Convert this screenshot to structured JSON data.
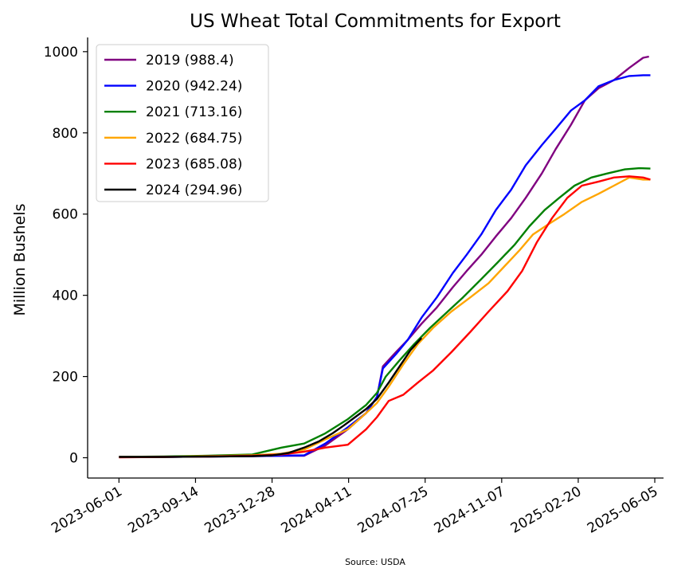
{
  "chart_data": {
    "type": "line",
    "title": "US Wheat Total Commitments for Export",
    "xlabel": "",
    "ylabel": "Million Bushels",
    "source": "Source: USDA",
    "ylim": [
      -50,
      1035
    ],
    "yticks": [
      0,
      200,
      400,
      600,
      800,
      1000
    ],
    "xlim": [
      "2023-04-19",
      "2025-06-17"
    ],
    "xticks": [
      "2023-06-01",
      "2023-09-14",
      "2023-12-28",
      "2024-04-11",
      "2024-07-25",
      "2024-11-07",
      "2025-02-20",
      "2025-06-05"
    ],
    "grid": false,
    "legend_position": "top-left",
    "series": [
      {
        "name": "2019 (988.4)",
        "color": "#800080",
        "x": [
          "2023-06-01",
          "2023-08-01",
          "2023-10-01",
          "2023-12-01",
          "2024-01-10",
          "2024-02-10",
          "2024-03-10",
          "2024-04-10",
          "2024-05-05",
          "2024-05-20",
          "2024-05-28",
          "2024-06-15",
          "2024-07-01",
          "2024-07-20",
          "2024-08-10",
          "2024-09-01",
          "2024-09-20",
          "2024-10-10",
          "2024-10-30",
          "2024-11-20",
          "2024-12-10",
          "2025-01-01",
          "2025-01-20",
          "2025-02-10",
          "2025-03-01",
          "2025-03-20",
          "2025-04-10",
          "2025-05-01",
          "2025-05-20",
          "2025-05-28"
        ],
        "values": [
          2,
          2,
          3,
          4,
          5,
          5,
          30,
          70,
          110,
          150,
          225,
          260,
          290,
          330,
          370,
          420,
          460,
          500,
          545,
          590,
          640,
          700,
          760,
          820,
          880,
          910,
          930,
          960,
          985,
          988
        ]
      },
      {
        "name": "2020 (942.24)",
        "color": "#0000ff",
        "x": [
          "2023-06-01",
          "2023-08-01",
          "2023-10-01",
          "2023-12-01",
          "2024-01-10",
          "2024-02-10",
          "2024-03-10",
          "2024-04-10",
          "2024-05-05",
          "2024-05-20",
          "2024-05-28",
          "2024-06-15",
          "2024-07-01",
          "2024-07-20",
          "2024-08-10",
          "2024-09-01",
          "2024-09-20",
          "2024-10-10",
          "2024-10-30",
          "2024-11-20",
          "2024-12-10",
          "2025-01-01",
          "2025-01-20",
          "2025-02-10",
          "2025-03-01",
          "2025-03-20",
          "2025-04-10",
          "2025-05-01",
          "2025-05-20",
          "2025-05-30"
        ],
        "values": [
          2,
          2,
          3,
          4,
          5,
          6,
          35,
          75,
          110,
          150,
          220,
          255,
          290,
          345,
          395,
          455,
          500,
          550,
          610,
          660,
          720,
          770,
          810,
          855,
          880,
          915,
          930,
          940,
          942,
          942
        ]
      },
      {
        "name": "2021 (713.16)",
        "color": "#008000",
        "x": [
          "2023-06-01",
          "2023-08-01",
          "2023-10-01",
          "2023-12-01",
          "2024-01-10",
          "2024-02-10",
          "2024-03-10",
          "2024-04-10",
          "2024-05-05",
          "2024-05-20",
          "2024-06-01",
          "2024-06-20",
          "2024-07-10",
          "2024-08-01",
          "2024-08-25",
          "2024-09-15",
          "2024-10-10",
          "2024-11-01",
          "2024-11-25",
          "2024-12-15",
          "2025-01-05",
          "2025-01-25",
          "2025-02-15",
          "2025-03-10",
          "2025-04-01",
          "2025-04-25",
          "2025-05-15",
          "2025-05-30"
        ],
        "values": [
          2,
          3,
          5,
          8,
          25,
          35,
          60,
          95,
          130,
          160,
          200,
          240,
          280,
          320,
          360,
          395,
          440,
          480,
          525,
          570,
          610,
          640,
          670,
          690,
          700,
          710,
          713,
          712
        ]
      },
      {
        "name": "2022 (684.75)",
        "color": "#ffa500",
        "x": [
          "2023-06-01",
          "2023-08-01",
          "2023-10-01",
          "2023-12-01",
          "2024-01-10",
          "2024-02-10",
          "2024-03-10",
          "2024-04-10",
          "2024-05-05",
          "2024-05-20",
          "2024-06-05",
          "2024-06-25",
          "2024-07-15",
          "2024-08-05",
          "2024-08-30",
          "2024-09-25",
          "2024-10-20",
          "2024-11-10",
          "2024-12-01",
          "2024-12-20",
          "2025-01-10",
          "2025-02-01",
          "2025-02-25",
          "2025-03-20",
          "2025-04-10",
          "2025-05-01",
          "2025-05-20",
          "2025-05-30"
        ],
        "values": [
          2,
          2,
          4,
          6,
          10,
          20,
          45,
          70,
          110,
          135,
          175,
          230,
          280,
          320,
          360,
          395,
          430,
          470,
          510,
          550,
          575,
          600,
          630,
          650,
          670,
          690,
          685,
          685
        ]
      },
      {
        "name": "2023 (685.08)",
        "color": "#ff0000",
        "x": [
          "2023-06-01",
          "2023-08-01",
          "2023-10-01",
          "2023-12-01",
          "2024-01-10",
          "2024-02-10",
          "2024-03-10",
          "2024-04-10",
          "2024-05-05",
          "2024-05-20",
          "2024-06-05",
          "2024-06-25",
          "2024-07-15",
          "2024-08-05",
          "2024-08-30",
          "2024-09-25",
          "2024-10-20",
          "2024-11-15",
          "2024-12-05",
          "2024-12-25",
          "2025-01-15",
          "2025-02-05",
          "2025-02-25",
          "2025-03-20",
          "2025-04-10",
          "2025-05-01",
          "2025-05-20",
          "2025-05-30"
        ],
        "values": [
          1,
          2,
          3,
          5,
          8,
          15,
          25,
          32,
          70,
          100,
          140,
          155,
          185,
          215,
          260,
          310,
          360,
          410,
          460,
          530,
          590,
          640,
          670,
          680,
          690,
          693,
          690,
          685
        ]
      },
      {
        "name": "2024 (294.96)",
        "color": "#000000",
        "x": [
          "2023-06-01",
          "2023-08-01",
          "2023-10-01",
          "2023-12-01",
          "2023-12-28",
          "2024-01-20",
          "2024-02-10",
          "2024-03-01",
          "2024-03-20",
          "2024-04-05",
          "2024-04-20",
          "2024-05-05",
          "2024-05-20",
          "2024-06-05",
          "2024-06-20",
          "2024-07-05",
          "2024-07-20"
        ],
        "values": [
          2,
          2,
          3,
          4,
          6,
          12,
          25,
          40,
          60,
          80,
          100,
          120,
          145,
          185,
          225,
          265,
          295
        ]
      }
    ]
  }
}
